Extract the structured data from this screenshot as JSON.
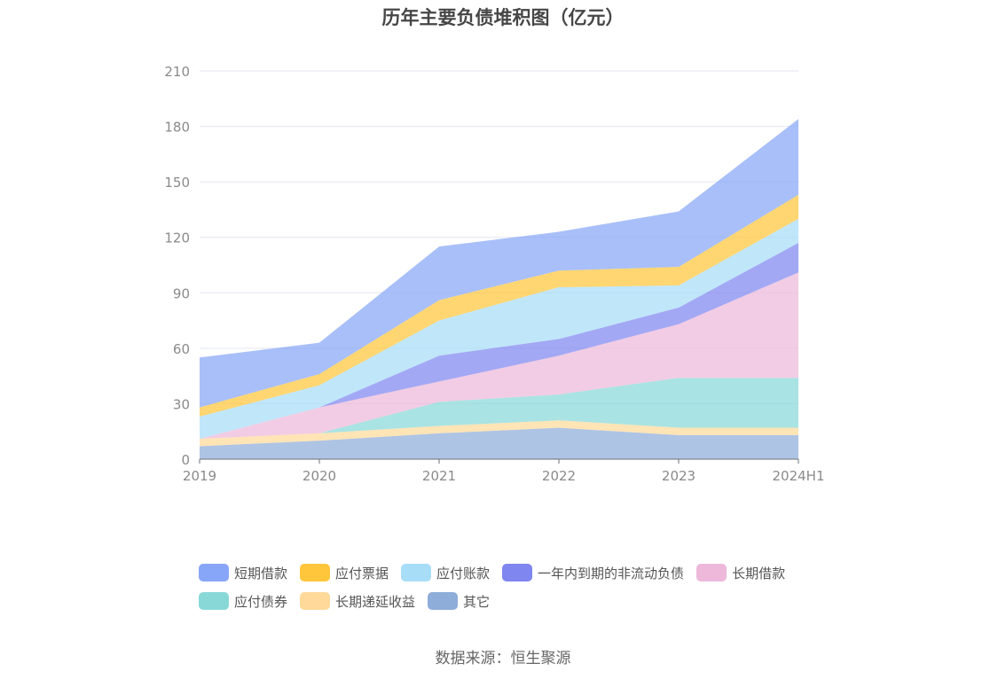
{
  "chart_data": {
    "type": "area",
    "stacked": true,
    "title": "历年主要负债堆积图（亿元）",
    "x": [
      "2019",
      "2020",
      "2021",
      "2022",
      "2023",
      "2024H1"
    ],
    "ylim": [
      0,
      210
    ],
    "yticks": [
      0,
      30,
      60,
      90,
      120,
      150,
      180,
      210
    ],
    "grid": true,
    "legend_position": "bottom",
    "series": [
      {
        "name": "其它",
        "color": "#8FADD9",
        "values": [
          7,
          10,
          14,
          17,
          13,
          13
        ]
      },
      {
        "name": "长期递延收益",
        "color": "#FFD99A",
        "values": [
          4,
          4,
          4,
          4,
          4,
          4
        ]
      },
      {
        "name": "应付债券",
        "color": "#89D8D8",
        "values": [
          0,
          0,
          13,
          14,
          27,
          27
        ]
      },
      {
        "name": "长期借款",
        "color": "#EDB8DA",
        "values": [
          0,
          14,
          11,
          21,
          29,
          57
        ]
      },
      {
        "name": "一年内到期的非流动负债",
        "color": "#7F86F0",
        "values": [
          0,
          0,
          14,
          9,
          9,
          16
        ]
      },
      {
        "name": "应付账款",
        "color": "#A8DDF8",
        "values": [
          12,
          12,
          19,
          28,
          12,
          13
        ]
      },
      {
        "name": "应付票据",
        "color": "#FFC63B",
        "values": [
          5,
          6,
          11,
          9,
          10,
          13
        ]
      },
      {
        "name": "短期借款",
        "color": "#88A6F7",
        "values": [
          27,
          17,
          29,
          21,
          30,
          41
        ]
      }
    ],
    "legend_order": [
      "短期借款",
      "应付票据",
      "应付账款",
      "一年内到期的非流动负债",
      "长期借款",
      "应付债券",
      "长期递延收益",
      "其它"
    ]
  },
  "source": "数据来源：恒生聚源"
}
